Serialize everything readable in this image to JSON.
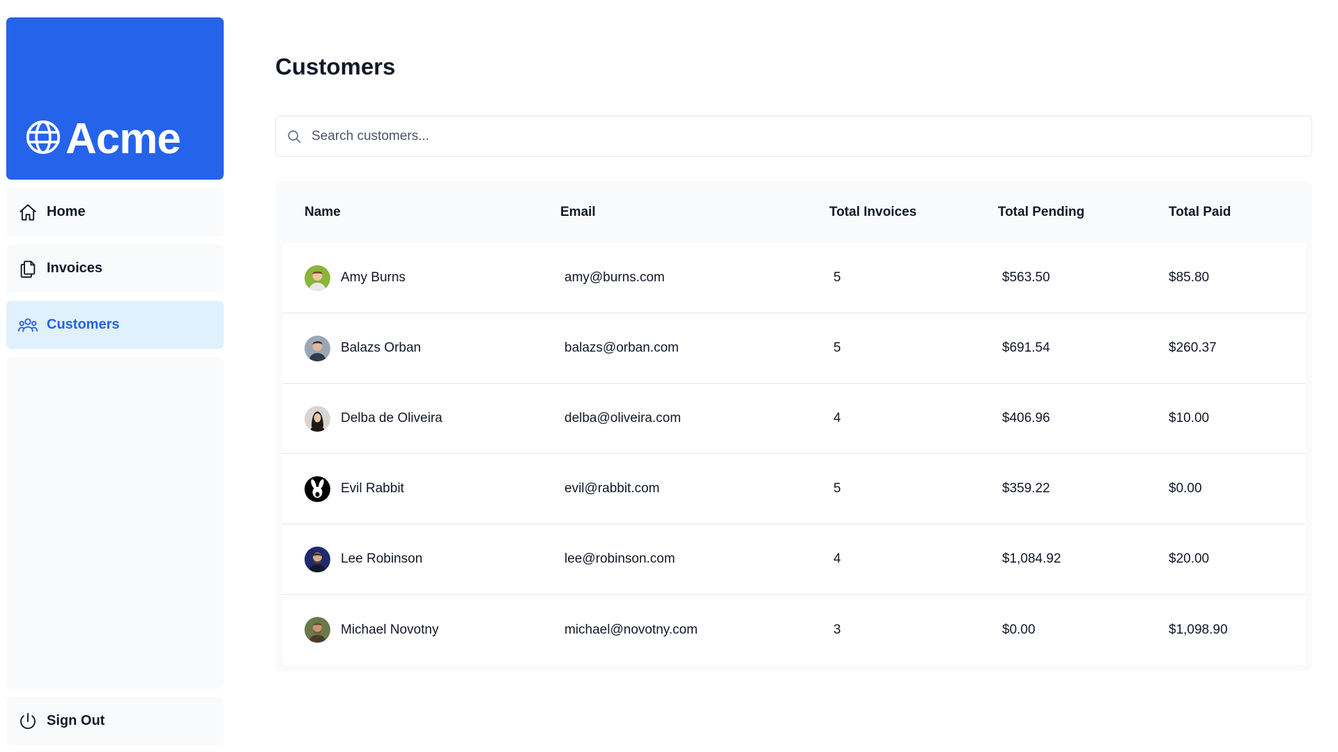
{
  "brand": {
    "name": "Acme",
    "color": "#2563eb",
    "logo_icon": "globe-icon"
  },
  "nav": {
    "items": [
      {
        "label": "Home",
        "icon": "home-icon"
      },
      {
        "label": "Invoices",
        "icon": "document-icon"
      },
      {
        "label": "Customers",
        "icon": "users-icon",
        "active": true
      }
    ],
    "sign_out": {
      "label": "Sign Out",
      "icon": "power-icon"
    }
  },
  "page": {
    "title": "Customers",
    "search": {
      "placeholder": "Search customers...",
      "value": ""
    }
  },
  "table": {
    "columns": [
      "Name",
      "Email",
      "Total Invoices",
      "Total Pending",
      "Total Paid"
    ],
    "rows": [
      {
        "name": "Amy Burns",
        "email": "amy@burns.com",
        "total_invoices": "5",
        "total_pending": "$563.50",
        "total_paid": "$85.80",
        "avatar_color": "#8bb53a"
      },
      {
        "name": "Balazs Orban",
        "email": "balazs@orban.com",
        "total_invoices": "5",
        "total_pending": "$691.54",
        "total_paid": "$260.37",
        "avatar_color": "#9aa7b5"
      },
      {
        "name": "Delba de Oliveira",
        "email": "delba@oliveira.com",
        "total_invoices": "4",
        "total_pending": "$406.96",
        "total_paid": "$10.00",
        "avatar_color": "#d9d6d2"
      },
      {
        "name": "Evil Rabbit",
        "email": "evil@rabbit.com",
        "total_invoices": "5",
        "total_pending": "$359.22",
        "total_paid": "$0.00",
        "avatar_color": "#000000"
      },
      {
        "name": "Lee Robinson",
        "email": "lee@robinson.com",
        "total_invoices": "4",
        "total_pending": "$1,084.92",
        "total_paid": "$20.00",
        "avatar_color": "#1f2a6b"
      },
      {
        "name": "Michael Novotny",
        "email": "michael@novotny.com",
        "total_invoices": "3",
        "total_pending": "$0.00",
        "total_paid": "$1,098.90",
        "avatar_color": "#6b7a4a"
      }
    ]
  }
}
